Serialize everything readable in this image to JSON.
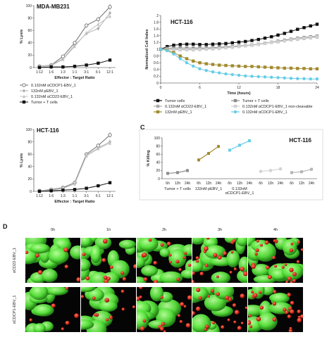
{
  "panel_letters": {
    "c": "C",
    "d": "D"
  },
  "colors": {
    "gray_dark": "#6f6f6f",
    "gray_mid": "#9a9a9a",
    "gray_light": "#c8c8c8",
    "black": "#111111",
    "olive": "#a28a2e",
    "cyan": "#66cde6"
  },
  "chart_data": [
    {
      "id": "mda",
      "type": "line",
      "title": "MDA-MB231",
      "xlabel": "Effector : Target Ratio",
      "ylabel": "% Lysis",
      "categories": [
        "1:12",
        "1:6",
        "1:3",
        "1:1",
        "3:1",
        "6:1",
        "12:1"
      ],
      "ylim": [
        0,
        100
      ],
      "yticks": [
        0,
        20,
        40,
        60,
        80,
        100
      ],
      "legend": {
        "position": "bottom",
        "columns": 2
      },
      "series": [
        {
          "name": "0.132nM αCDCP1-EBV_1",
          "color": "#6f6f6f",
          "marker": "circle-open",
          "values": [
            2,
            4,
            18,
            40,
            68,
            78,
            98
          ]
        },
        {
          "name": "132nM pEBV_1",
          "color": "#b0b0b0",
          "marker": "diamond",
          "values": [
            2,
            4,
            14,
            36,
            55,
            63,
            88
          ]
        },
        {
          "name": "0.132nM αCD22-EBV_1",
          "color": "#c4c4c4",
          "marker": "triangle",
          "values": [
            1,
            3,
            13,
            34,
            56,
            70,
            83
          ]
        },
        {
          "name": "Tumor + T cells",
          "color": "#111111",
          "marker": "square",
          "values": [
            0,
            1,
            1,
            2,
            4,
            7,
            12
          ]
        }
      ]
    },
    {
      "id": "hct_rtca",
      "type": "line",
      "title": "HCT-116",
      "xlabel": "Time (hours)",
      "ylabel": "Normalized Cell Index",
      "xlim": [
        0,
        24
      ],
      "xticks": [
        0,
        6,
        12,
        18,
        24
      ],
      "ylim": [
        0,
        2
      ],
      "yticks": [
        0,
        0.2,
        0.4,
        0.6,
        0.8,
        1,
        1.2,
        1.4,
        1.6,
        1.8,
        2
      ],
      "legend": {
        "position": "bottom",
        "columns": 2
      },
      "series": [
        {
          "name": "Tumor cells",
          "color": "#111111",
          "marker": "square",
          "x": [
            0,
            1,
            2,
            3,
            4,
            5,
            6,
            7,
            8,
            9,
            10,
            11,
            12,
            13,
            14,
            15,
            16,
            17,
            18,
            19,
            20,
            21,
            22,
            23,
            24
          ],
          "values": [
            1.0,
            1.08,
            1.12,
            1.14,
            1.15,
            1.15,
            1.14,
            1.14,
            1.15,
            1.16,
            1.17,
            1.19,
            1.21,
            1.23,
            1.26,
            1.29,
            1.33,
            1.37,
            1.42,
            1.47,
            1.53,
            1.59,
            1.64,
            1.69,
            1.74
          ]
        },
        {
          "name": "Tumor + T cells",
          "color": "#8c8c8c",
          "marker": "square",
          "x": [
            0,
            1,
            2,
            3,
            4,
            5,
            6,
            7,
            8,
            9,
            10,
            11,
            12,
            13,
            14,
            15,
            16,
            17,
            18,
            19,
            20,
            21,
            22,
            23,
            24
          ],
          "values": [
            1.0,
            1.03,
            1.04,
            1.04,
            1.04,
            1.04,
            1.04,
            1.04,
            1.05,
            1.06,
            1.07,
            1.08,
            1.1,
            1.11,
            1.13,
            1.15,
            1.18,
            1.21,
            1.24,
            1.27,
            1.3,
            1.33,
            1.35,
            1.37,
            1.39
          ]
        },
        {
          "name": "0.132nM αCD22-EBV_1",
          "color": "#a9a9a9",
          "marker": "square",
          "x": [
            0,
            1,
            2,
            3,
            4,
            5,
            6,
            7,
            8,
            9,
            10,
            11,
            12,
            13,
            14,
            15,
            16,
            17,
            18,
            19,
            20,
            21,
            22,
            23,
            24
          ],
          "values": [
            1.0,
            1.0,
            1.0,
            1.0,
            1.0,
            1.0,
            1.01,
            1.01,
            1.02,
            1.03,
            1.05,
            1.06,
            1.08,
            1.1,
            1.12,
            1.14,
            1.17,
            1.2,
            1.22,
            1.25,
            1.28,
            1.3,
            1.32,
            1.34,
            1.36
          ]
        },
        {
          "name": "0.132nM αCDCP1-EBV_1 non-cleavable",
          "color": "#d0d0d0",
          "marker": "square",
          "x": [
            0,
            1,
            2,
            3,
            4,
            5,
            6,
            7,
            8,
            9,
            10,
            11,
            12,
            13,
            14,
            15,
            16,
            17,
            18,
            19,
            20,
            21,
            22,
            23,
            24
          ],
          "values": [
            1.0,
            0.99,
            0.98,
            0.98,
            0.98,
            0.98,
            0.99,
            1.0,
            1.01,
            1.02,
            1.04,
            1.06,
            1.08,
            1.1,
            1.12,
            1.14,
            1.17,
            1.2,
            1.22,
            1.25,
            1.28,
            1.31,
            1.33,
            1.35,
            1.37
          ]
        },
        {
          "name": "132nM pEBV_1",
          "color": "#a28a2e",
          "marker": "square",
          "x": [
            0,
            1,
            2,
            3,
            4,
            5,
            6,
            7,
            8,
            9,
            10,
            11,
            12,
            13,
            14,
            15,
            16,
            17,
            18,
            19,
            20,
            21,
            22,
            23,
            24
          ],
          "values": [
            1.0,
            0.97,
            0.9,
            0.8,
            0.72,
            0.65,
            0.6,
            0.57,
            0.55,
            0.53,
            0.52,
            0.51,
            0.5,
            0.49,
            0.49,
            0.48,
            0.47,
            0.46,
            0.45,
            0.44,
            0.44,
            0.43,
            0.43,
            0.42,
            0.42
          ]
        },
        {
          "name": "0.132nM αCDCP1-EBV_1",
          "color": "#66cde6",
          "marker": "circle",
          "x": [
            0,
            1,
            2,
            3,
            4,
            5,
            6,
            7,
            8,
            9,
            10,
            11,
            12,
            13,
            14,
            15,
            16,
            17,
            18,
            19,
            20,
            21,
            22,
            23,
            24
          ],
          "values": [
            1.0,
            0.96,
            0.86,
            0.72,
            0.6,
            0.5,
            0.42,
            0.37,
            0.33,
            0.3,
            0.27,
            0.25,
            0.23,
            0.21,
            0.2,
            0.19,
            0.18,
            0.17,
            0.16,
            0.15,
            0.14,
            0.13,
            0.13,
            0.12,
            0.12
          ]
        }
      ]
    },
    {
      "id": "hct_lysis",
      "type": "line",
      "title": "HCT-116",
      "xlabel": "Effector : Target Ratio",
      "ylabel": "% Lysis",
      "categories": [
        "1:12",
        "1:6",
        "1:3",
        "1:1",
        "3:1",
        "6:1",
        "12:1"
      ],
      "ylim": [
        0,
        100
      ],
      "yticks": [
        0,
        20,
        40,
        60,
        80,
        100
      ],
      "series": [
        {
          "name": "0.132nM αCDCP1-EBV_1",
          "color": "#6f6f6f",
          "marker": "circle-open",
          "values": [
            1,
            3,
            6,
            14,
            60,
            74,
            91
          ]
        },
        {
          "name": "132nM pEBV_1",
          "color": "#b0b0b0",
          "marker": "diamond",
          "values": [
            1,
            2,
            5,
            12,
            58,
            70,
            80
          ]
        },
        {
          "name": "0.132nM αCD22-EBV_1",
          "color": "#c4c4c4",
          "marker": "triangle",
          "values": [
            1,
            2,
            5,
            12,
            57,
            69,
            78
          ]
        },
        {
          "name": "Tumor + T cells",
          "color": "#111111",
          "marker": "square",
          "values": [
            0,
            1,
            2,
            3,
            5,
            9,
            14
          ]
        }
      ]
    },
    {
      "id": "hct_killing",
      "type": "line",
      "title": "HCT-116",
      "ylabel": "% Killing",
      "ylim": [
        0,
        100
      ],
      "yticks": [
        0,
        20,
        40,
        60,
        80,
        100
      ],
      "time_labels": [
        "6h",
        "12h",
        "24h"
      ],
      "groups": [
        {
          "name": "Tumor + T cells",
          "color": "#8c8c8c",
          "values": [
            13,
            15,
            20
          ]
        },
        {
          "name": "132nM pEBV_1",
          "color": "#a28a2e",
          "values": [
            46,
            62,
            79
          ]
        },
        {
          "name": "0.132nM αCDCP1-EBV_1",
          "color": "#66cde6",
          "values": [
            70,
            82,
            93
          ]
        },
        {
          "name": "0.132nM αCD22-EBV_1",
          "color": "#d2d2d2",
          "values": [
            18,
            20,
            24
          ]
        },
        {
          "name": "0.132nM αCDCP1-EBV_1 non-cleavable",
          "color": "#b5b5b5",
          "values": [
            15,
            17,
            23
          ]
        }
      ]
    }
  ],
  "micro": {
    "time_labels": [
      "0h",
      "1h",
      "2h",
      "3h",
      "4h"
    ],
    "row_labels": [
      "αCD22-EBV_1",
      "αCDCP1-EBV_1"
    ]
  }
}
